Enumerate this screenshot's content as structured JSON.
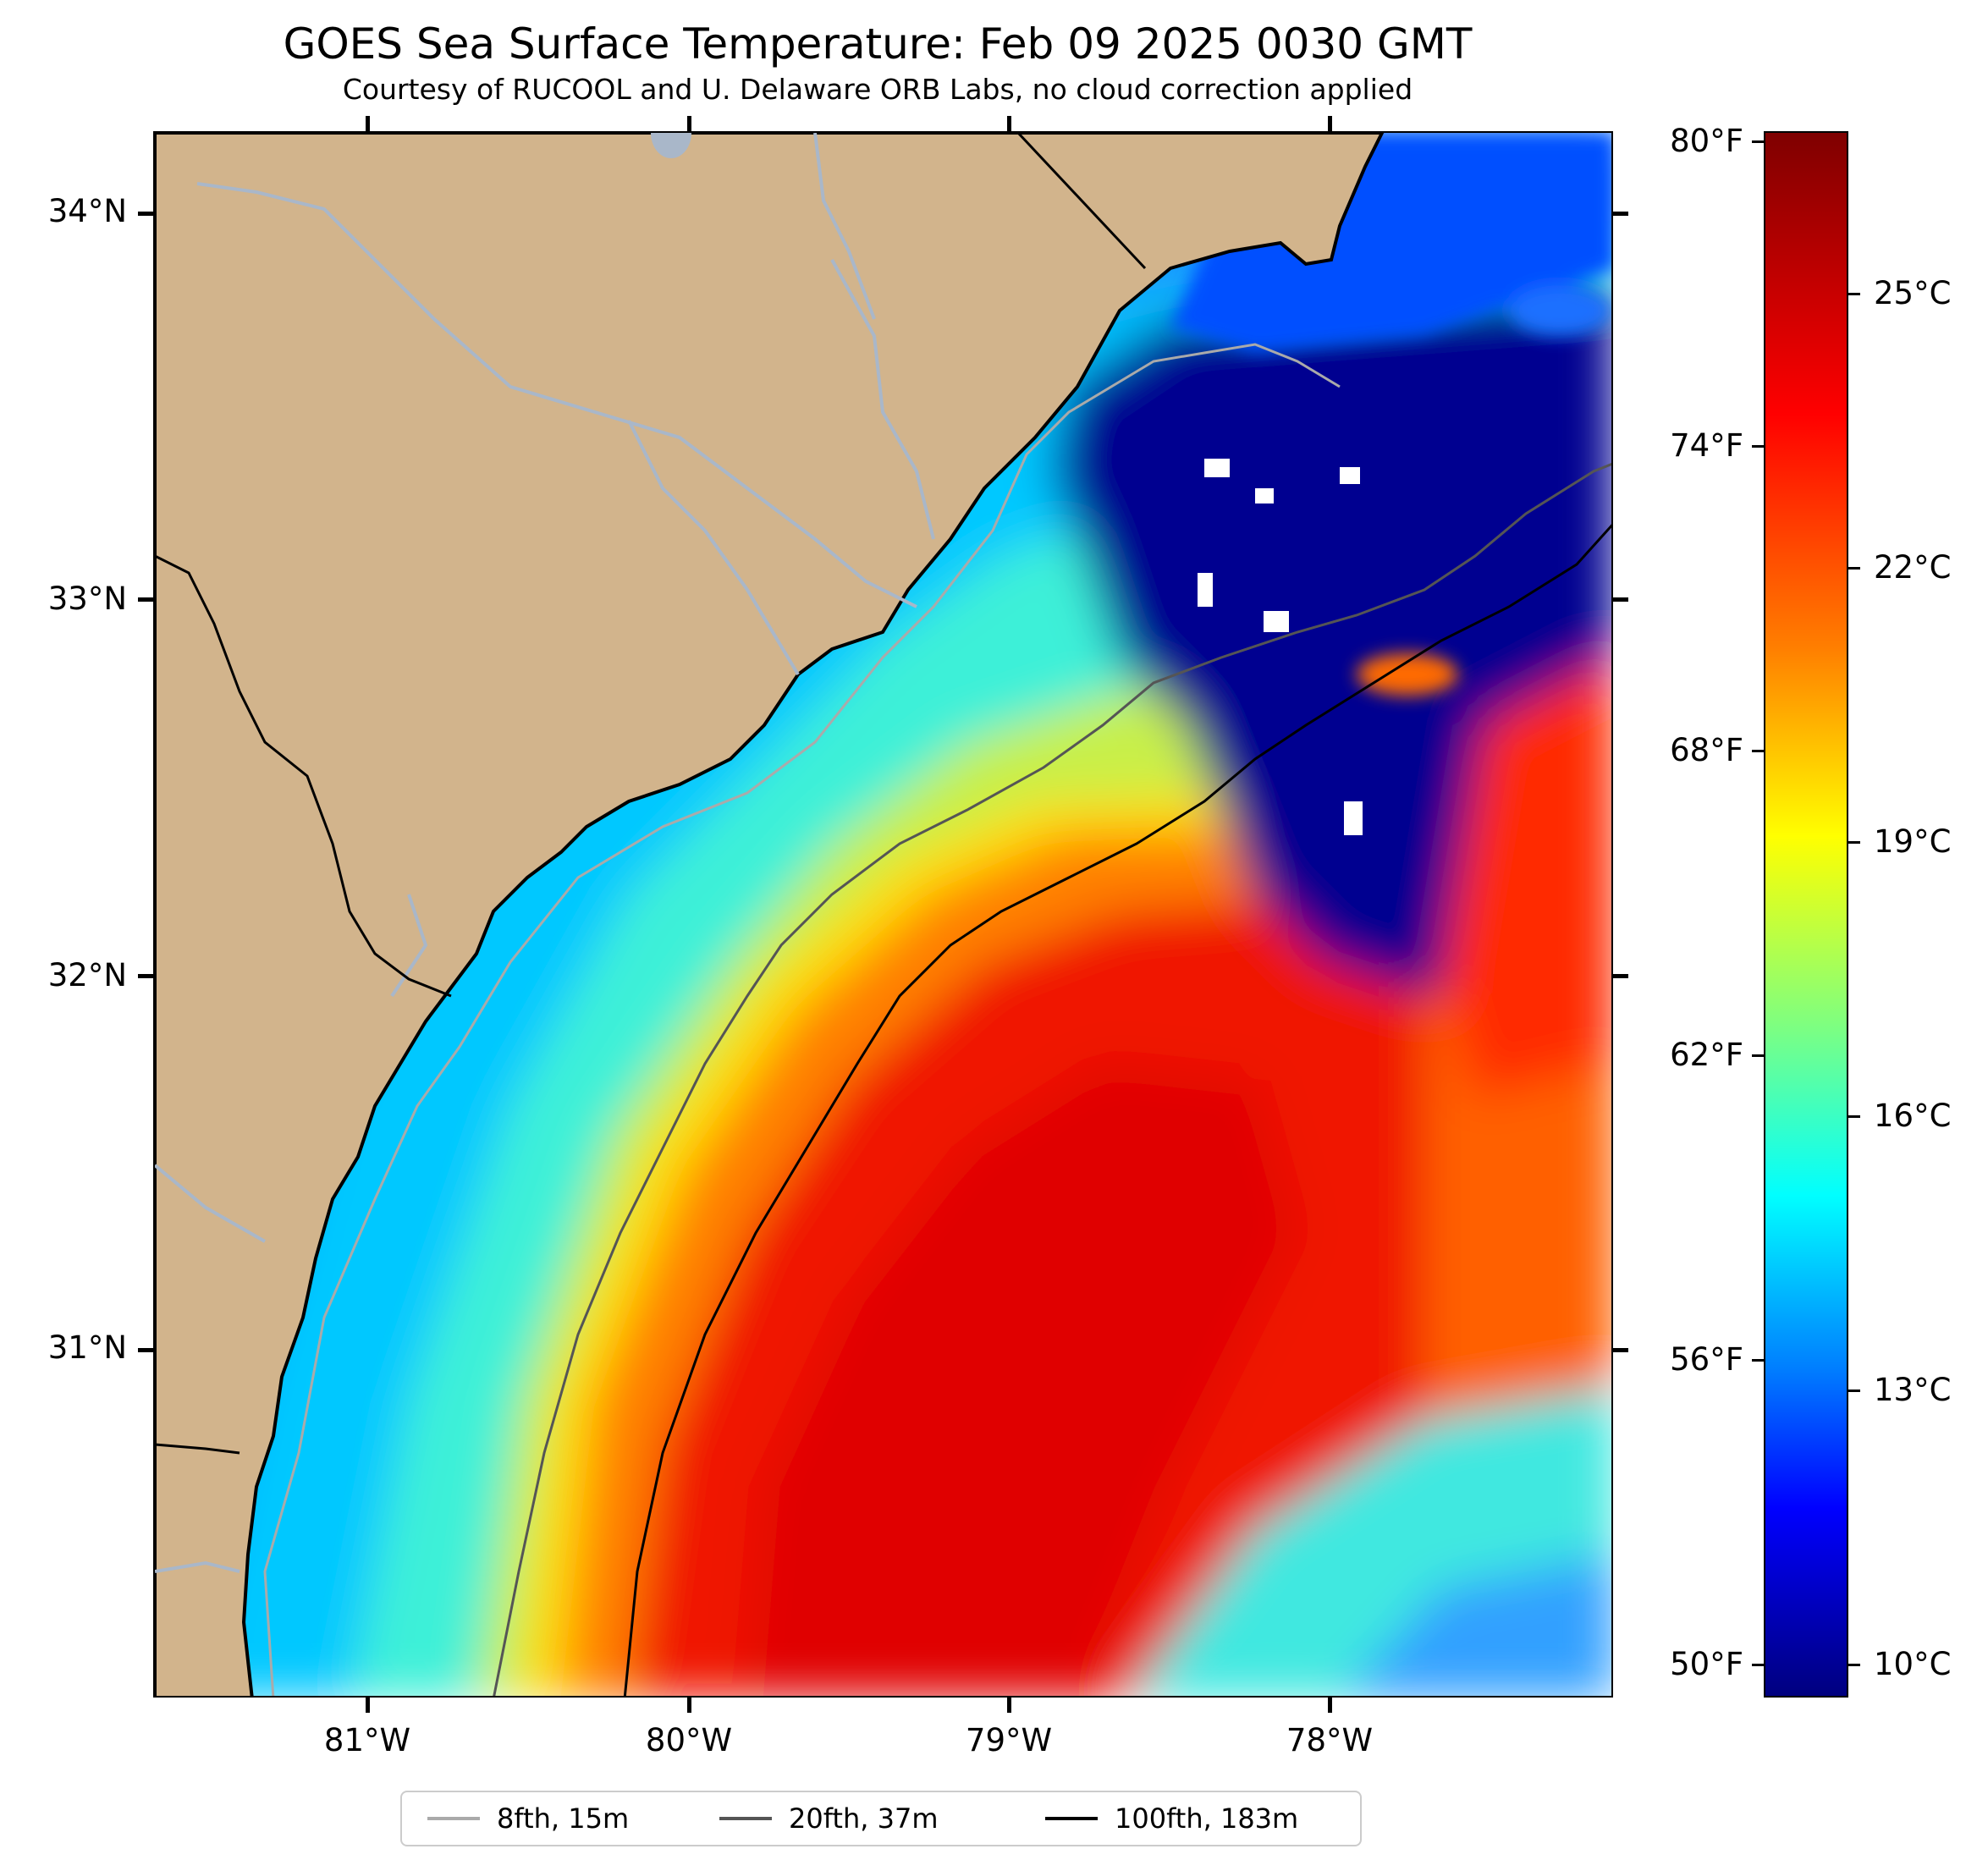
{
  "title": "GOES Sea Surface Temperature: Feb 09 2025 0030 GMT",
  "subtitle": "Courtesy of RUCOOL and U. Delaware ORB Labs, no cloud correction applied",
  "map": {
    "latitude_labels": [
      "34°N",
      "33°N",
      "32°N",
      "31°N"
    ],
    "longitude_labels": [
      "81°W",
      "80°W",
      "79°W",
      "78°W"
    ],
    "colors": {
      "land": "#d2b48c",
      "rivers": "#a9b7c9",
      "coast": "#000000"
    }
  },
  "colorbar": {
    "fahrenheit_labels": [
      "80°F",
      "74°F",
      "68°F",
      "62°F",
      "56°F",
      "50°F"
    ],
    "celsius_labels": [
      "25°C",
      "22°C",
      "19°C",
      "16°C",
      "13°C",
      "10°C"
    ],
    "range_c": [
      9.5,
      27.0
    ],
    "colormap": "jet"
  },
  "legend": {
    "items": [
      {
        "label": "8fth, 15m",
        "color": "#aaaaaa"
      },
      {
        "label": "20fth, 37m",
        "color": "#555555"
      },
      {
        "label": "100fth, 183m",
        "color": "#000000"
      }
    ]
  }
}
